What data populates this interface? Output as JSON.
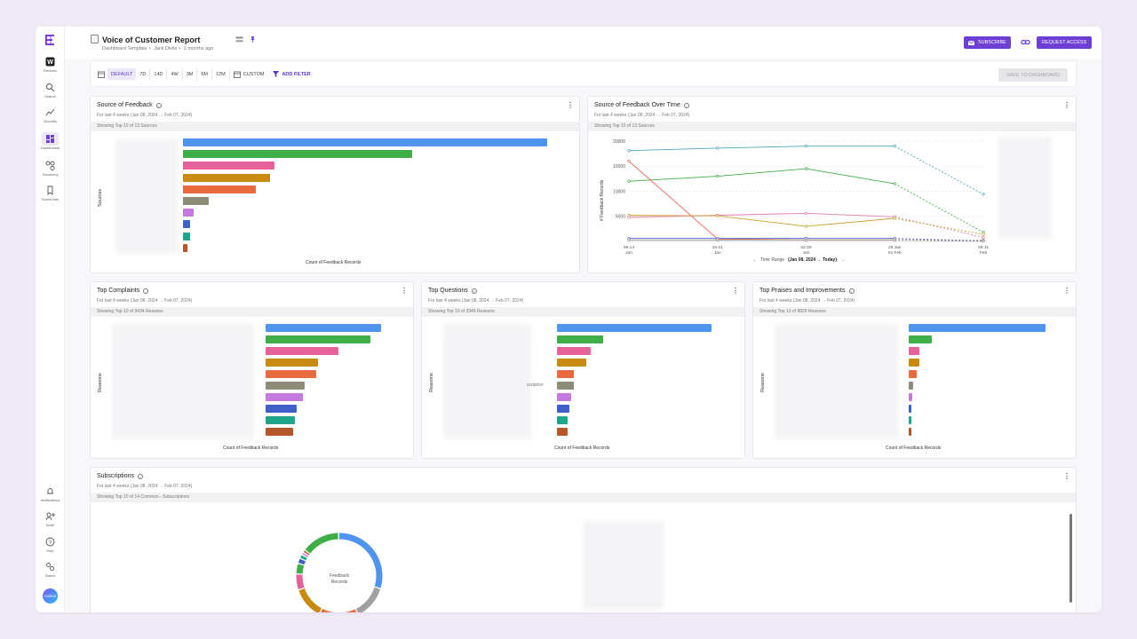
{
  "app": {
    "nav": [
      {
        "label": "Reviews",
        "icon": "reviews-icon"
      },
      {
        "label": "Search",
        "icon": "search-icon"
      },
      {
        "label": "Quantify",
        "icon": "quantify-icon"
      },
      {
        "label": "Dashboards",
        "icon": "dashboards-icon"
      },
      {
        "label": "Taxonomy",
        "icon": "taxonomy-icon"
      },
      {
        "label": "Saved lists",
        "icon": "bookmark-icon"
      }
    ],
    "bottom_nav": [
      {
        "label": "Notifications",
        "icon": "bell-icon"
      },
      {
        "label": "Invite",
        "icon": "invite-icon"
      },
      {
        "label": "Help",
        "icon": "help-icon"
      },
      {
        "label": "Switch",
        "icon": "switch-icon"
      }
    ],
    "avatar_label": "Canva"
  },
  "header": {
    "title": "Voice of Customer Report",
    "subtitle_template": "Dashboard Template",
    "subtitle_author": "Jack Divits",
    "subtitle_time": "2 months ago",
    "subscribe_label": "SUBSCRIBE",
    "request_access_label": "REQUEST ACCESS"
  },
  "filterbar": {
    "ranges": [
      "DEFAULT",
      "7D",
      "14D",
      "4W",
      "3M",
      "6M",
      "12M"
    ],
    "custom_label": "CUSTOM",
    "add_filter_label": "ADD FILTER",
    "save_label": "SAVE TO DASHBOARD"
  },
  "cards": {
    "source": {
      "title": "Source of Feedback",
      "sub": "For last 4 weeks (Jan 08, 2024 → Feb 07, 2024)",
      "band": "Showing Top 10 of 13 Sources",
      "yaxis": "Sources",
      "xaxis": "Count of Feedback Records"
    },
    "over_time": {
      "title": "Source of Feedback Over Time",
      "sub": "For last 4 weeks (Jan 08, 2024 → Feb 07, 2024)",
      "band": "Showing Top 10 of 13 Sources",
      "yaxis": "# Feedback Records",
      "time_range_label": "Time Range",
      "time_range_value": "(Jan 08, 2024 → Today)"
    },
    "complaints": {
      "title": "Top Complaints",
      "sub": "For last 4 weeks (Jan 08, 2024 → Feb 07, 2024)",
      "band": "Showing Top 10 of 9434 Reasons",
      "yaxis": "Reasons",
      "xaxis": "Count of Feedback Records"
    },
    "questions": {
      "title": "Top Questions",
      "sub": "For last 4 weeks (Jan 08, 2024 → Feb 07, 2024)",
      "band": "Showing Top 10 of 3949 Reasons",
      "yaxis": "Reasons",
      "xaxis": "Count of Feedback Records",
      "partial_label": "scription"
    },
    "praises": {
      "title": "Top Praises and Improvements",
      "sub": "For last 4 weeks (Jan 08, 2024 → Feb 07, 2024)",
      "band": "Showing Top 10 of 9829 Reasons",
      "yaxis": "Reasons",
      "xaxis": "Count of Feedback Records"
    },
    "subscriptions": {
      "title": "Subscriptions",
      "sub": "For last 4 weeks (Jan 08, 2024 → Feb 07, 2024)",
      "band": "Showing Top 10 of 14 Common - Subscriptions",
      "center_line1": "Feedback",
      "center_line2": "Records"
    }
  },
  "colors": {
    "accent": "#6d3fd4",
    "series": [
      "#4f94ef",
      "#3fae49",
      "#e6609a",
      "#c98a12",
      "#ea6a40",
      "#8c8c78",
      "#c57ae0",
      "#3f5fc9",
      "#1ea68a",
      "#b5572a"
    ]
  },
  "chart_data": [
    {
      "id": "source_of_feedback",
      "type": "bar",
      "orientation": "horizontal",
      "title": "Source of Feedback",
      "xlabel": "Count of Feedback Records",
      "ylabel": "Sources",
      "values": [
        100,
        63,
        25,
        24,
        20,
        7,
        3,
        2,
        2,
        1.3
      ]
    },
    {
      "id": "source_over_time",
      "type": "line",
      "title": "Source of Feedback Over Time",
      "ylabel": "# Feedback Records",
      "x": [
        "08-14 Jan",
        "15-21 Jan",
        "22-28 Jan",
        "29 Jan 04 Feb",
        "05-11 Feb"
      ],
      "y_ticks": [
        5000,
        10000,
        15000,
        20000
      ],
      "ylim": [
        0,
        20000
      ],
      "series": [
        {
          "values": [
            18100,
            18600,
            19000,
            19000,
            9400
          ]
        },
        {
          "values": [
            12000,
            13000,
            14500,
            11500,
            1800
          ]
        },
        {
          "values": [
            16000,
            500,
            300,
            300,
            200
          ]
        },
        {
          "values": [
            4800,
            5200,
            5600,
            4900,
            800
          ]
        },
        {
          "values": [
            5200,
            5100,
            3000,
            4600,
            1400
          ]
        },
        {
          "values": [
            600,
            600,
            600,
            600,
            100
          ]
        },
        {
          "values": [
            300,
            300,
            300,
            300,
            50
          ]
        }
      ]
    },
    {
      "id": "top_complaints",
      "type": "bar",
      "orientation": "horizontal",
      "title": "Top Complaints",
      "xlabel": "Count of Feedback Records",
      "ylabel": "Reasons",
      "values": [
        100,
        91,
        63,
        45,
        44,
        34,
        32,
        27,
        25,
        24
      ]
    },
    {
      "id": "top_questions",
      "type": "bar",
      "orientation": "horizontal",
      "title": "Top Questions",
      "xlabel": "Count of Feedback Records",
      "ylabel": "Reasons",
      "values": [
        100,
        30,
        22,
        19,
        11,
        11,
        9,
        8,
        7,
        7
      ]
    },
    {
      "id": "top_praises",
      "type": "bar",
      "orientation": "horizontal",
      "title": "Top Praises and Improvements",
      "xlabel": "Count of Feedback Records",
      "ylabel": "Reasons",
      "values": [
        100,
        17,
        8,
        8,
        6,
        3,
        2.5,
        2,
        2,
        2
      ]
    },
    {
      "id": "subscriptions",
      "type": "pie",
      "title": "Subscriptions",
      "values": [
        30,
        13,
        15,
        12,
        6,
        4,
        2,
        1.5,
        1,
        1,
        14.5
      ]
    }
  ]
}
